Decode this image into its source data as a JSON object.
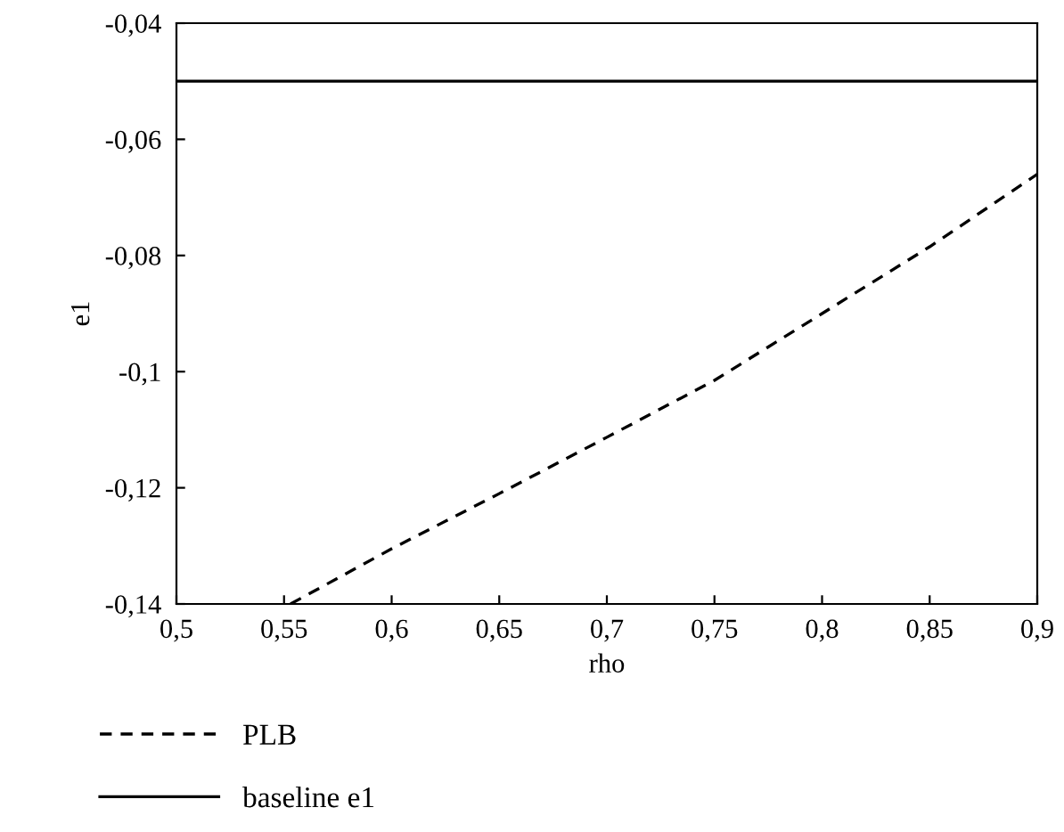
{
  "chart_data": {
    "type": "line",
    "xlabel": "rho",
    "ylabel": "e1",
    "series": [
      {
        "name": "PLB",
        "color": "#000000",
        "line_style": "dashed",
        "x": [
          0.553,
          0.6,
          0.65,
          0.7,
          0.75,
          0.8,
          0.85,
          0.9
        ],
        "values": [
          -0.14,
          -0.1305,
          -0.121,
          -0.1113,
          -0.1015,
          -0.09,
          -0.0785,
          -0.066
        ]
      },
      {
        "name": "baseline e1",
        "color": "#000000",
        "line_style": "solid",
        "x": [
          0.5,
          0.9
        ],
        "values": [
          -0.05,
          -0.05
        ]
      }
    ],
    "xlim": [
      0.5,
      0.9
    ],
    "ylim": [
      -0.14,
      -0.04
    ],
    "xticks": [
      {
        "value": 0.5,
        "label": "0,5"
      },
      {
        "value": 0.55,
        "label": "0,55"
      },
      {
        "value": 0.6,
        "label": "0,6"
      },
      {
        "value": 0.65,
        "label": "0,65"
      },
      {
        "value": 0.7,
        "label": "0,7"
      },
      {
        "value": 0.75,
        "label": "0,75"
      },
      {
        "value": 0.8,
        "label": "0,8"
      },
      {
        "value": 0.85,
        "label": "0,85"
      },
      {
        "value": 0.9,
        "label": "0,9"
      }
    ],
    "yticks": [
      {
        "value": -0.14,
        "label": "-0,14"
      },
      {
        "value": -0.12,
        "label": "-0,12"
      },
      {
        "value": -0.1,
        "label": "-0,1"
      },
      {
        "value": -0.08,
        "label": "-0,08"
      },
      {
        "value": -0.06,
        "label": "-0,06"
      },
      {
        "value": -0.04,
        "label": "-0,04"
      }
    ],
    "grid": false,
    "legend": "bottom left",
    "marker": "none"
  }
}
